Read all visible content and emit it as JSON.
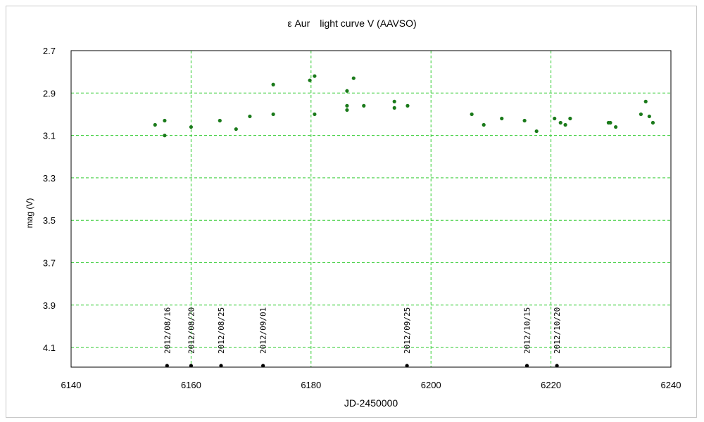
{
  "chart_data": {
    "type": "scatter",
    "title": "ε Aur　light curve V (AAVSO)",
    "xlabel": "JD-2450000",
    "ylabel": "mag (V)",
    "xlim": [
      6140,
      6240
    ],
    "ylim": [
      2.7,
      4.2
    ],
    "y_inverted": true,
    "grid": true,
    "x_ticks": [
      6140,
      6160,
      6180,
      6200,
      6220,
      6240
    ],
    "x_gridlines": [
      6160,
      6180,
      6200,
      6220
    ],
    "y_ticks": [
      "2.7",
      "2.9",
      "3.1",
      "3.3",
      "3.5",
      "3.7",
      "3.9",
      "4.1"
    ],
    "colors": {
      "grid": "#33cc33",
      "points": "#1a7a1a",
      "markers": "#000000",
      "axes": "#000000"
    },
    "series": [
      {
        "name": "",
        "points": [
          {
            "x": 6154.0,
            "y": 3.05
          },
          {
            "x": 6155.6,
            "y": 3.03
          },
          {
            "x": 6155.6,
            "y": 3.1
          },
          {
            "x": 6160.0,
            "y": 3.06
          },
          {
            "x": 6164.8,
            "y": 3.03
          },
          {
            "x": 6167.5,
            "y": 3.07
          },
          {
            "x": 6169.8,
            "y": 3.01
          },
          {
            "x": 6173.7,
            "y": 2.86
          },
          {
            "x": 6173.7,
            "y": 3.0
          },
          {
            "x": 6179.8,
            "y": 2.84
          },
          {
            "x": 6180.6,
            "y": 2.82
          },
          {
            "x": 6180.6,
            "y": 3.0
          },
          {
            "x": 6186.0,
            "y": 2.89
          },
          {
            "x": 6186.0,
            "y": 2.96
          },
          {
            "x": 6186.0,
            "y": 2.98
          },
          {
            "x": 6187.1,
            "y": 2.83
          },
          {
            "x": 6188.8,
            "y": 2.96
          },
          {
            "x": 6193.9,
            "y": 2.94
          },
          {
            "x": 6193.9,
            "y": 2.97
          },
          {
            "x": 6196.1,
            "y": 2.96
          },
          {
            "x": 6206.8,
            "y": 3.0
          },
          {
            "x": 6208.8,
            "y": 3.05
          },
          {
            "x": 6211.8,
            "y": 3.02
          },
          {
            "x": 6215.6,
            "y": 3.03
          },
          {
            "x": 6217.6,
            "y": 3.08
          },
          {
            "x": 6220.6,
            "y": 3.02
          },
          {
            "x": 6221.6,
            "y": 3.04
          },
          {
            "x": 6222.4,
            "y": 3.05
          },
          {
            "x": 6223.2,
            "y": 3.02
          },
          {
            "x": 6229.6,
            "y": 3.04
          },
          {
            "x": 6229.9,
            "y": 3.04
          },
          {
            "x": 6230.8,
            "y": 3.06
          },
          {
            "x": 6235.0,
            "y": 3.0
          },
          {
            "x": 6235.8,
            "y": 2.94
          },
          {
            "x": 6236.4,
            "y": 3.01
          },
          {
            "x": 6237.0,
            "y": 3.04
          }
        ]
      }
    ],
    "date_markers": [
      {
        "label": "2012/08/16",
        "x": 6156.0
      },
      {
        "label": "2012/08/20",
        "x": 6160.0
      },
      {
        "label": "2012/08/25",
        "x": 6165.0
      },
      {
        "label": "2012/09/01",
        "x": 6172.0
      },
      {
        "label": "2012/09/25",
        "x": 6196.0
      },
      {
        "label": "2012/10/15",
        "x": 6216.0
      },
      {
        "label": "2012/10/20",
        "x": 6221.0
      }
    ]
  }
}
